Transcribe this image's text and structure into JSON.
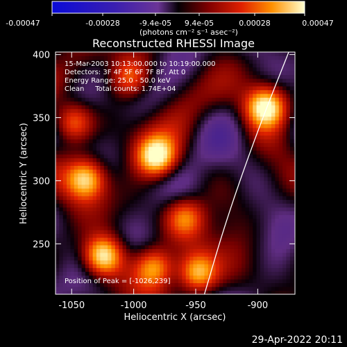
{
  "colorbar": {
    "ticks": [
      "-0.00047",
      "-0.00028",
      "-9.4e-05",
      "9.4e-05",
      "0.00028",
      "0.00047"
    ],
    "unit_label": "(photons cm⁻² s⁻¹ asec⁻²)",
    "range": [
      -0.00047,
      0.00047
    ]
  },
  "chart_data": {
    "type": "heatmap",
    "title": "Reconstructed RHESSI Image",
    "xlabel": "Heliocentric X (arcsec)",
    "ylabel": "Heliocentric Y (arcsec)",
    "xlim": [
      -1063,
      -870
    ],
    "ylim": [
      210,
      402
    ],
    "x_ticks": [
      -1050,
      -1000,
      -950,
      -900
    ],
    "y_ticks": [
      250,
      300,
      350,
      400
    ],
    "annotations": [
      "15-Mar-2003 10:13:00.000 to 10:19:00.000",
      "Detectors: 3F 4F 5F 6F 7F 8F, Att 0",
      "Energy Range: 25.0 - 50.0 keV",
      "Clean     Total counts: 1.74E+04"
    ],
    "peak_label": "Position of Peak = [-1026,239]",
    "peak": [
      -1026,
      239
    ],
    "bright_sources": [
      {
        "x": -1026,
        "y": 239,
        "level": 1.0
      },
      {
        "x": -983,
        "y": 318,
        "level": 0.95
      },
      {
        "x": -895,
        "y": 357,
        "level": 0.95
      },
      {
        "x": -1040,
        "y": 300,
        "level": 0.8
      },
      {
        "x": -1050,
        "y": 345,
        "level": 0.7
      },
      {
        "x": -950,
        "y": 225,
        "level": 0.8
      },
      {
        "x": -960,
        "y": 270,
        "level": 0.6
      },
      {
        "x": -1005,
        "y": 380,
        "level": 0.55
      },
      {
        "x": -985,
        "y": 230,
        "level": 0.7
      }
    ],
    "limb_curve": [
      [
        -943,
        210
      ],
      [
        -925,
        270
      ],
      [
        -900,
        340
      ],
      [
        -875,
        402
      ]
    ]
  },
  "timestamp": "29-Apr-2022 20:11"
}
